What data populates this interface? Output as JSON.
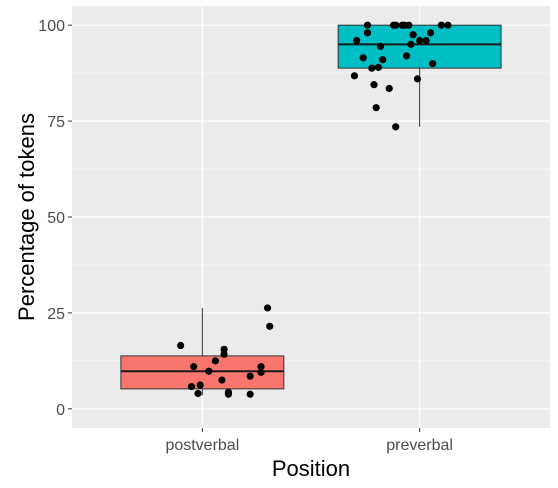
{
  "chart_data": {
    "type": "box",
    "xlabel": "Position",
    "ylabel": "Percentage of tokens",
    "ylim": [
      0,
      100
    ],
    "y_ticks": [
      0,
      25,
      50,
      75,
      100
    ],
    "y_tick_labels": [
      "0",
      "25",
      "50",
      "75",
      "100"
    ],
    "categories": [
      "postverbal",
      "preverbal"
    ],
    "grid": true,
    "panel_background": "#ebebeb",
    "boxes": [
      {
        "category": "postverbal",
        "fill": "#f8766d",
        "whisker_low": 3.5,
        "q1": 5.2,
        "median": 9.8,
        "q3": 13.8,
        "whisker_high": 26.3,
        "points": [
          [
            0.9,
            16.5
          ],
          [
            0.95,
            5.8
          ],
          [
            0.96,
            11.0
          ],
          [
            0.98,
            4.0
          ],
          [
            0.99,
            6.2
          ],
          [
            1.03,
            9.8
          ],
          [
            1.06,
            12.5
          ],
          [
            1.09,
            7.5
          ],
          [
            1.1,
            15.5
          ],
          [
            1.1,
            14.2
          ],
          [
            1.12,
            4.3
          ],
          [
            1.12,
            3.8
          ],
          [
            1.22,
            8.5
          ],
          [
            1.22,
            3.8
          ],
          [
            1.27,
            11.0
          ],
          [
            1.27,
            9.5
          ],
          [
            1.3,
            26.3
          ],
          [
            1.31,
            21.5
          ]
        ]
      },
      {
        "category": "preverbal",
        "fill": "#00bfc4",
        "whisker_low": 73.5,
        "q1": 88.8,
        "median": 95.0,
        "q3": 100.0,
        "whisker_high": 100.0,
        "points": [
          [
            1.7,
            86.8
          ],
          [
            1.71,
            96.0
          ],
          [
            1.74,
            91.5
          ],
          [
            1.76,
            98.0
          ],
          [
            1.76,
            100.0
          ],
          [
            1.78,
            88.8
          ],
          [
            1.79,
            84.5
          ],
          [
            1.8,
            78.5
          ],
          [
            1.81,
            89.0
          ],
          [
            1.82,
            94.5
          ],
          [
            1.83,
            91.0
          ],
          [
            1.86,
            83.5
          ],
          [
            1.88,
            100.0
          ],
          [
            1.89,
            100.0
          ],
          [
            1.89,
            73.5
          ],
          [
            1.92,
            100.0
          ],
          [
            1.93,
            100.0
          ],
          [
            1.94,
            92.0
          ],
          [
            1.96,
            95.0
          ],
          [
            1.97,
            97.5
          ],
          [
            1.99,
            86.0
          ],
          [
            2.0,
            96.0
          ],
          [
            2.03,
            96.0
          ],
          [
            2.06,
            90.0
          ],
          [
            2.1,
            100.0
          ],
          [
            2.13,
            100.0
          ],
          [
            1.95,
            100.0
          ],
          [
            2.05,
            98.0
          ]
        ]
      }
    ]
  }
}
